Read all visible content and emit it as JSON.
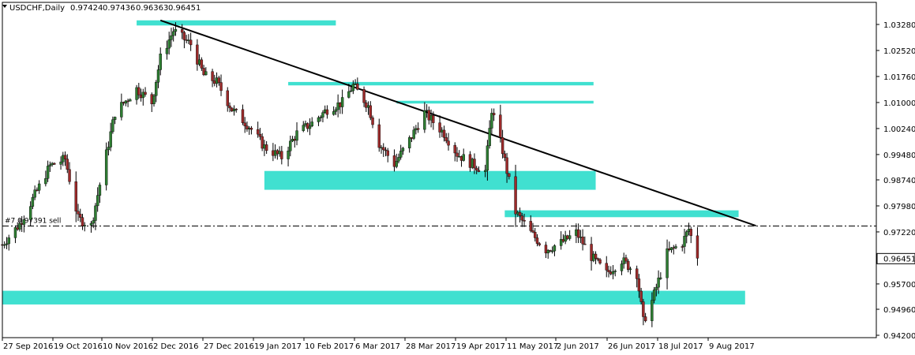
{
  "header": {
    "symbol": "USDCHF,Daily",
    "open": "0.97424",
    "high": "0.97436",
    "low": "0.96363",
    "close": "0.96451",
    "menu_icon": "triangle-down-icon"
  },
  "colors": {
    "background": "#ffffff",
    "zone": "#40e0d0",
    "bull_candle": "#2e7d32",
    "bear_candle": "#9c2a2a",
    "wick": "#000000",
    "trendline": "#000000",
    "order_line": "#000000"
  },
  "order_label": "#7 0.97391 sell",
  "price_tag": "0.96451",
  "chart_data": {
    "type": "candlestick",
    "symbol": "USDCHF",
    "timeframe": "Daily",
    "ylim": [
      0.942,
      1.0375
    ],
    "grid": false,
    "y_ticks": [
      "1.03280",
      "1.02520",
      "1.01760",
      "1.01000",
      "1.00240",
      "0.99480",
      "0.98740",
      "0.97980",
      "0.97220",
      "0.96451",
      "0.95700",
      "0.94960",
      "0.94200"
    ],
    "x_ticks": [
      "27 Sep 2016",
      "19 Oct 2016",
      "10 Nov 2016",
      "2 Dec 2016",
      "27 Dec 2016",
      "19 Jan 2017",
      "10 Feb 2017",
      "6 Mar 2017",
      "28 Mar 2017",
      "19 Apr 2017",
      "11 May 2017",
      "2 Jun 2017",
      "26 Jun 2017",
      "18 Jul 2017",
      "9 Aug 2017"
    ],
    "price_path": [
      {
        "date": "2016-09-27",
        "price": 0.9685
      },
      {
        "date": "2016-10-05",
        "price": 0.9745
      },
      {
        "date": "2016-10-19",
        "price": 0.9915
      },
      {
        "date": "2016-10-26",
        "price": 0.9935
      },
      {
        "date": "2016-11-01",
        "price": 0.976
      },
      {
        "date": "2016-11-07",
        "price": 0.974
      },
      {
        "date": "2016-11-10",
        "price": 0.983
      },
      {
        "date": "2016-11-18",
        "price": 1.007
      },
      {
        "date": "2016-11-28",
        "price": 1.014
      },
      {
        "date": "2016-12-05",
        "price": 1.01
      },
      {
        "date": "2016-12-09",
        "price": 1.023
      },
      {
        "date": "2016-12-15",
        "price": 1.031
      },
      {
        "date": "2016-12-23",
        "price": 1.027
      },
      {
        "date": "2016-12-29",
        "price": 1.018
      },
      {
        "date": "2017-01-04",
        "price": 1.016
      },
      {
        "date": "2017-01-11",
        "price": 1.008
      },
      {
        "date": "2017-01-19",
        "price": 1.003
      },
      {
        "date": "2017-01-26",
        "price": 0.997
      },
      {
        "date": "2017-02-03",
        "price": 0.994
      },
      {
        "date": "2017-02-10",
        "price": 1.001
      },
      {
        "date": "2017-02-17",
        "price": 1.004
      },
      {
        "date": "2017-02-24",
        "price": 1.008
      },
      {
        "date": "2017-03-03",
        "price": 1.01
      },
      {
        "date": "2017-03-08",
        "price": 1.015
      },
      {
        "date": "2017-03-15",
        "price": 1.009
      },
      {
        "date": "2017-03-20",
        "price": 0.998
      },
      {
        "date": "2017-03-27",
        "price": 0.992
      },
      {
        "date": "2017-04-03",
        "price": 0.999
      },
      {
        "date": "2017-04-10",
        "price": 1.007
      },
      {
        "date": "2017-04-19",
        "price": 1.001
      },
      {
        "date": "2017-04-25",
        "price": 0.995
      },
      {
        "date": "2017-05-02",
        "price": 0.992
      },
      {
        "date": "2017-05-08",
        "price": 0.99
      },
      {
        "date": "2017-05-11",
        "price": 1.008
      },
      {
        "date": "2017-05-16",
        "price": 0.996
      },
      {
        "date": "2017-05-22",
        "price": 0.978
      },
      {
        "date": "2017-05-29",
        "price": 0.972
      },
      {
        "date": "2017-06-05",
        "price": 0.967
      },
      {
        "date": "2017-06-12",
        "price": 0.969
      },
      {
        "date": "2017-06-19",
        "price": 0.972
      },
      {
        "date": "2017-06-26",
        "price": 0.965
      },
      {
        "date": "2017-07-03",
        "price": 0.96
      },
      {
        "date": "2017-07-10",
        "price": 0.964
      },
      {
        "date": "2017-07-17",
        "price": 0.96
      },
      {
        "date": "2017-07-20",
        "price": 0.946
      },
      {
        "date": "2017-07-24",
        "price": 0.952
      },
      {
        "date": "2017-07-31",
        "price": 0.966
      },
      {
        "date": "2017-08-07",
        "price": 0.969
      },
      {
        "date": "2017-08-10",
        "price": 0.973
      },
      {
        "date": "2017-08-14",
        "price": 0.9645
      }
    ],
    "zones": [
      {
        "from": "2016-11-28",
        "to": "2017-02-28",
        "top": 1.034,
        "bottom": 1.0325
      },
      {
        "from": "2017-02-06",
        "to": "2017-06-27",
        "top": 1.016,
        "bottom": 1.015
      },
      {
        "from": "2017-03-28",
        "to": "2017-06-27",
        "top": 1.0105,
        "bottom": 1.0097
      },
      {
        "from": "2017-01-26",
        "to": "2017-06-28",
        "top": 0.99,
        "bottom": 0.9845
      },
      {
        "from": "2017-05-17",
        "to": "2017-09-02",
        "top": 0.9785,
        "bottom": 0.9765
      },
      {
        "from": "2016-09-22",
        "to": "2017-09-05",
        "top": 0.955,
        "bottom": 0.951
      }
    ],
    "trendline": {
      "start": {
        "date": "2016-12-09",
        "price": 1.034
      },
      "end": {
        "date": "2017-09-10",
        "price": 0.974
      }
    },
    "order_line": {
      "price": 0.97391,
      "label": "#7 0.97391 sell"
    }
  }
}
